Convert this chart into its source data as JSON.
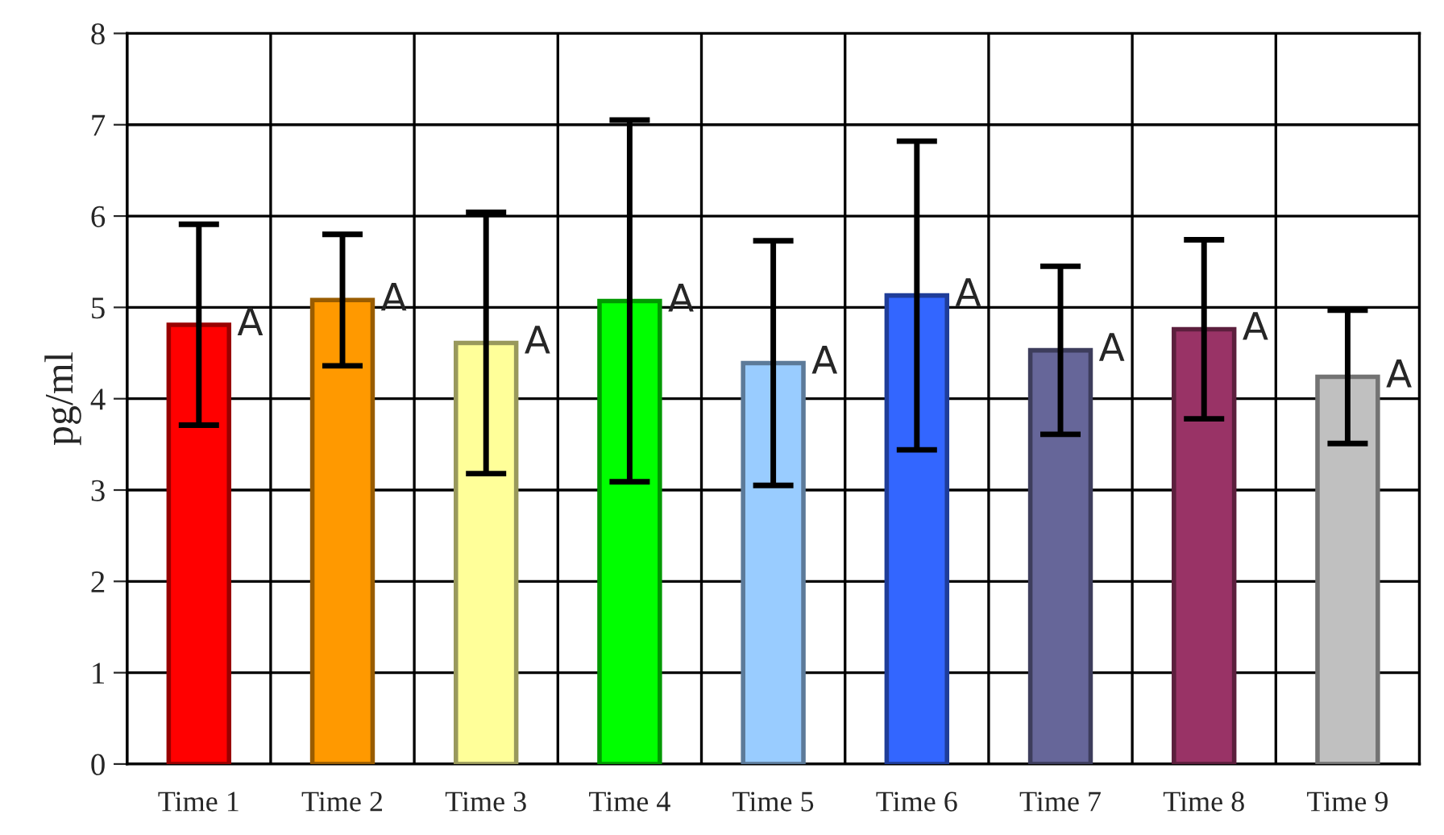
{
  "chart_data": {
    "type": "bar",
    "ylabel": "pg/ml",
    "categories": [
      "Time 1",
      "Time 2",
      "Time 3",
      "Time 4",
      "Time 5",
      "Time 6",
      "Time 7",
      "Time 8",
      "Time 9"
    ],
    "values": [
      4.81,
      5.08,
      4.61,
      5.07,
      4.39,
      5.13,
      4.53,
      4.76,
      4.24
    ],
    "errors": [
      1.1,
      0.72,
      1.43,
      1.98,
      1.34,
      1.69,
      0.92,
      0.98,
      0.73
    ],
    "colors": [
      "#ff0000",
      "#ff9900",
      "#ffff99",
      "#00ff00",
      "#99ccff",
      "#3366ff",
      "#666699",
      "#993366",
      "#c0c0c0"
    ],
    "ylim": [
      0,
      8
    ],
    "yticks": [
      0,
      1,
      2,
      3,
      4,
      5,
      6,
      7,
      8
    ],
    "grid": true,
    "annotations": [
      {
        "text": "A",
        "x": "Time 1",
        "y": 4.81
      },
      {
        "text": "A",
        "x": "Time 2",
        "y": 5.08
      },
      {
        "text": "A",
        "x": "Time 3",
        "y": 4.61
      },
      {
        "text": "A",
        "x": "Time 4",
        "y": 5.07
      },
      {
        "text": "A",
        "x": "Time 5",
        "y": 4.39
      },
      {
        "text": "A",
        "x": "Time 6",
        "y": 5.13
      },
      {
        "text": "A",
        "x": "Time 7",
        "y": 4.53
      },
      {
        "text": "A",
        "x": "Time 8",
        "y": 4.76
      },
      {
        "text": "A",
        "x": "Time 9",
        "y": 4.24
      }
    ]
  }
}
